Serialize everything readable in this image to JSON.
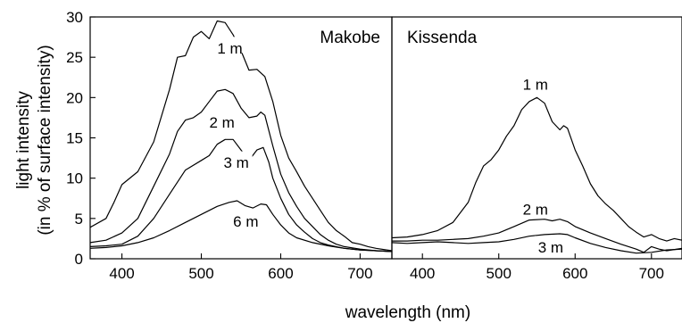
{
  "chart_data": [
    {
      "type": "line",
      "panel_title": "Makobe",
      "xlim": [
        360,
        740
      ],
      "ylim": [
        0,
        30
      ],
      "xticks": [
        400,
        500,
        600,
        700
      ],
      "yticks": [
        0,
        5,
        10,
        15,
        20,
        25,
        30
      ],
      "series": [
        {
          "name": "1 m",
          "label_at": [
            536,
            26.2
          ],
          "points": [
            [
              360,
              3.9
            ],
            [
              380,
              5.0
            ],
            [
              390,
              7.0
            ],
            [
              400,
              9.2
            ],
            [
              420,
              10.8
            ],
            [
              440,
              14.5
            ],
            [
              460,
              21.0
            ],
            [
              470,
              25.0
            ],
            [
              480,
              25.2
            ],
            [
              490,
              27.5
            ],
            [
              500,
              28.2
            ],
            [
              510,
              27.3
            ],
            [
              520,
              29.5
            ],
            [
              530,
              29.3
            ],
            [
              540,
              27.8
            ],
            [
              550,
              25.8
            ],
            [
              560,
              23.4
            ],
            [
              570,
              23.5
            ],
            [
              580,
              22.6
            ],
            [
              590,
              19.5
            ],
            [
              600,
              15.3
            ],
            [
              610,
              12.5
            ],
            [
              620,
              10.8
            ],
            [
              630,
              9.0
            ],
            [
              640,
              7.5
            ],
            [
              650,
              6.0
            ],
            [
              660,
              4.5
            ],
            [
              670,
              3.5
            ],
            [
              680,
              2.8
            ],
            [
              690,
              2.0
            ],
            [
              700,
              1.8
            ],
            [
              710,
              1.5
            ],
            [
              720,
              1.3
            ],
            [
              740,
              1.0
            ]
          ]
        },
        {
          "name": "2 m",
          "label_at": [
            526,
            17.0
          ],
          "points": [
            [
              360,
              2.0
            ],
            [
              380,
              2.3
            ],
            [
              400,
              3.2
            ],
            [
              420,
              5.0
            ],
            [
              440,
              9.0
            ],
            [
              460,
              13.0
            ],
            [
              470,
              15.8
            ],
            [
              480,
              17.2
            ],
            [
              490,
              17.5
            ],
            [
              500,
              18.2
            ],
            [
              510,
              19.5
            ],
            [
              520,
              20.8
            ],
            [
              530,
              21.0
            ],
            [
              540,
              20.5
            ],
            [
              550,
              18.7
            ],
            [
              560,
              17.5
            ],
            [
              570,
              17.7
            ],
            [
              575,
              18.2
            ],
            [
              580,
              17.8
            ],
            [
              590,
              14.0
            ],
            [
              600,
              10.5
            ],
            [
              610,
              8.2
            ],
            [
              620,
              6.5
            ],
            [
              630,
              5.0
            ],
            [
              640,
              4.0
            ],
            [
              650,
              3.0
            ],
            [
              660,
              2.3
            ],
            [
              670,
              1.8
            ],
            [
              680,
              1.5
            ],
            [
              700,
              1.2
            ],
            [
              720,
              1.0
            ],
            [
              740,
              0.9
            ]
          ]
        },
        {
          "name": "3 m",
          "label_at": [
            544,
            12.0
          ],
          "points": [
            [
              360,
              1.5
            ],
            [
              380,
              1.6
            ],
            [
              400,
              1.8
            ],
            [
              420,
              2.8
            ],
            [
              440,
              5.0
            ],
            [
              460,
              8.0
            ],
            [
              480,
              11.0
            ],
            [
              500,
              12.2
            ],
            [
              510,
              12.8
            ],
            [
              520,
              14.2
            ],
            [
              530,
              14.8
            ],
            [
              540,
              14.8
            ],
            [
              550,
              13.5
            ],
            [
              560,
              12.2
            ],
            [
              570,
              13.5
            ],
            [
              578,
              13.8
            ],
            [
              585,
              12.0
            ],
            [
              590,
              10.0
            ],
            [
              600,
              7.5
            ],
            [
              610,
              5.5
            ],
            [
              620,
              4.2
            ],
            [
              630,
              3.3
            ],
            [
              640,
              2.5
            ],
            [
              650,
              2.0
            ],
            [
              660,
              1.7
            ],
            [
              680,
              1.3
            ],
            [
              700,
              1.1
            ],
            [
              720,
              1.0
            ],
            [
              740,
              0.9
            ]
          ]
        },
        {
          "name": "6 m",
          "label_at": [
            556,
            4.7
          ],
          "points": [
            [
              360,
              1.3
            ],
            [
              380,
              1.4
            ],
            [
              400,
              1.6
            ],
            [
              420,
              2.0
            ],
            [
              440,
              2.6
            ],
            [
              460,
              3.5
            ],
            [
              480,
              4.5
            ],
            [
              500,
              5.5
            ],
            [
              520,
              6.5
            ],
            [
              535,
              7.0
            ],
            [
              545,
              7.2
            ],
            [
              555,
              6.6
            ],
            [
              565,
              6.3
            ],
            [
              575,
              6.8
            ],
            [
              582,
              6.7
            ],
            [
              590,
              5.5
            ],
            [
              600,
              4.2
            ],
            [
              610,
              3.2
            ],
            [
              620,
              2.6
            ],
            [
              640,
              2.0
            ],
            [
              660,
              1.6
            ],
            [
              680,
              1.3
            ],
            [
              700,
              1.1
            ],
            [
              720,
              1.0
            ],
            [
              740,
              0.9
            ]
          ]
        }
      ]
    },
    {
      "type": "line",
      "panel_title": "Kissenda",
      "xlim": [
        360,
        740
      ],
      "ylim": [
        0,
        30
      ],
      "xticks": [
        400,
        500,
        600,
        700
      ],
      "series": [
        {
          "name": "1 m",
          "label_at": [
            548,
            21.7
          ],
          "points": [
            [
              360,
              2.6
            ],
            [
              380,
              2.7
            ],
            [
              400,
              3.0
            ],
            [
              420,
              3.5
            ],
            [
              440,
              4.5
            ],
            [
              460,
              7.0
            ],
            [
              470,
              9.5
            ],
            [
              480,
              11.5
            ],
            [
              490,
              12.3
            ],
            [
              500,
              13.5
            ],
            [
              510,
              15.2
            ],
            [
              520,
              16.5
            ],
            [
              530,
              18.5
            ],
            [
              540,
              19.5
            ],
            [
              550,
              20.0
            ],
            [
              560,
              19.3
            ],
            [
              570,
              17.0
            ],
            [
              580,
              16.0
            ],
            [
              585,
              16.5
            ],
            [
              590,
              16.2
            ],
            [
              600,
              13.5
            ],
            [
              610,
              11.5
            ],
            [
              620,
              9.3
            ],
            [
              630,
              7.8
            ],
            [
              640,
              6.8
            ],
            [
              650,
              6.0
            ],
            [
              660,
              5.0
            ],
            [
              670,
              4.0
            ],
            [
              680,
              3.3
            ],
            [
              690,
              2.7
            ],
            [
              700,
              3.0
            ],
            [
              710,
              2.5
            ],
            [
              720,
              2.2
            ],
            [
              730,
              2.5
            ],
            [
              740,
              2.3
            ]
          ]
        },
        {
          "name": "2 m",
          "label_at": [
            548,
            6.2
          ],
          "points": [
            [
              360,
              2.2
            ],
            [
              380,
              2.2
            ],
            [
              400,
              2.3
            ],
            [
              420,
              2.3
            ],
            [
              440,
              2.4
            ],
            [
              460,
              2.5
            ],
            [
              480,
              2.8
            ],
            [
              500,
              3.2
            ],
            [
              520,
              4.0
            ],
            [
              540,
              4.8
            ],
            [
              560,
              4.9
            ],
            [
              570,
              4.7
            ],
            [
              580,
              4.9
            ],
            [
              590,
              4.6
            ],
            [
              600,
              4.0
            ],
            [
              620,
              3.2
            ],
            [
              640,
              2.5
            ],
            [
              660,
              1.8
            ],
            [
              680,
              1.2
            ],
            [
              690,
              0.8
            ],
            [
              700,
              1.5
            ],
            [
              710,
              1.2
            ],
            [
              720,
              1.0
            ],
            [
              740,
              1.3
            ]
          ]
        },
        {
          "name": "3 m",
          "label_at": [
            568,
            1.5
          ],
          "points": [
            [
              360,
              2.0
            ],
            [
              380,
              1.9
            ],
            [
              400,
              2.0
            ],
            [
              420,
              2.1
            ],
            [
              440,
              2.0
            ],
            [
              460,
              1.9
            ],
            [
              480,
              2.0
            ],
            [
              500,
              2.1
            ],
            [
              520,
              2.4
            ],
            [
              540,
              2.8
            ],
            [
              560,
              3.0
            ],
            [
              580,
              3.1
            ],
            [
              590,
              3.0
            ],
            [
              600,
              2.6
            ],
            [
              620,
              1.9
            ],
            [
              640,
              1.4
            ],
            [
              660,
              1.0
            ],
            [
              680,
              0.7
            ],
            [
              700,
              0.8
            ],
            [
              720,
              1.1
            ],
            [
              740,
              1.2
            ]
          ]
        }
      ]
    }
  ],
  "ylabel_line1": "light intensity",
  "ylabel_line2": "(in % of surface intensity)",
  "xlabel": "wavelength (nm)"
}
